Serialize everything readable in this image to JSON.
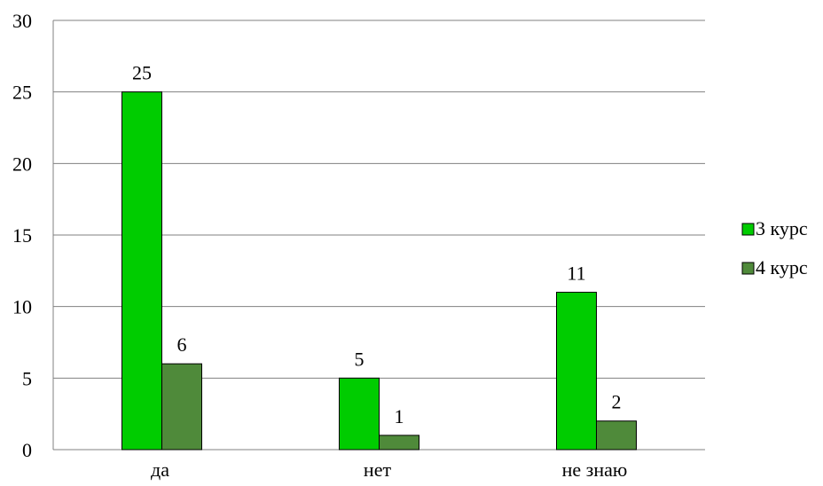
{
  "chart_data": {
    "type": "bar",
    "categories": [
      "да",
      "нет",
      "не знаю"
    ],
    "series": [
      {
        "name": "3 курс",
        "values": [
          25,
          5,
          11
        ],
        "color": "#00cc00"
      },
      {
        "name": "4 курс",
        "values": [
          6,
          1,
          2
        ],
        "color": "#4f8a3a"
      }
    ],
    "ylim": [
      0,
      30
    ],
    "yticks": [
      0,
      5,
      10,
      15,
      20,
      25,
      30
    ],
    "grid": true,
    "legend": "right",
    "data_labels": true
  }
}
